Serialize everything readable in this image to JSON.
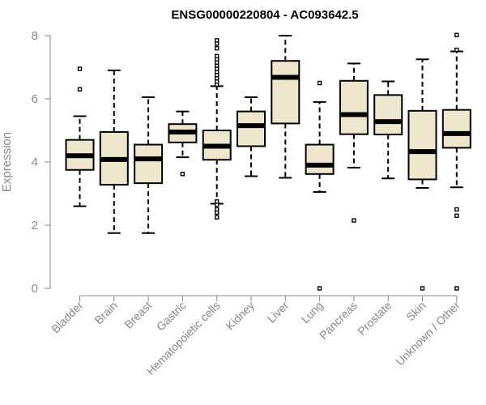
{
  "chart_data": {
    "type": "boxplot",
    "title": "ENSG00000220804 - AC093642.5",
    "xlabel": "",
    "ylabel": "Expression",
    "ylim": [
      0,
      8
    ],
    "yticks": [
      0,
      2,
      4,
      6,
      8
    ],
    "colors": {
      "box_fill": "#EEE6CC",
      "stroke": "#000000",
      "axis": "#888888",
      "text": "#888888"
    },
    "categories": [
      "Bladder",
      "Brain",
      "Breast",
      "Gastric",
      "Hematopoietic cells",
      "Kidney",
      "Liver",
      "Lung",
      "Pancreas",
      "Prostate",
      "Skin",
      "Unknown / Other"
    ],
    "boxes": [
      {
        "name": "Bladder",
        "whisker_low": 2.6,
        "q1": 3.75,
        "median": 4.2,
        "q3": 4.7,
        "whisker_high": 5.45,
        "outliers": [
          6.3,
          6.95
        ]
      },
      {
        "name": "Brain",
        "whisker_low": 1.75,
        "q1": 3.28,
        "median": 4.08,
        "q3": 4.95,
        "whisker_high": 6.9,
        "outliers": []
      },
      {
        "name": "Breast",
        "whisker_low": 1.75,
        "q1": 3.33,
        "median": 4.1,
        "q3": 4.55,
        "whisker_high": 6.05,
        "outliers": []
      },
      {
        "name": "Gastric",
        "whisker_low": 4.15,
        "q1": 4.62,
        "median": 4.95,
        "q3": 5.2,
        "whisker_high": 5.6,
        "outliers": [
          3.62
        ]
      },
      {
        "name": "Hematopoietic cells",
        "whisker_low": 2.68,
        "q1": 4.07,
        "median": 4.5,
        "q3": 5.0,
        "whisker_high": 6.4,
        "outliers": [
          2.25,
          2.4,
          2.5,
          2.65,
          2.75,
          6.45,
          6.55,
          6.65,
          6.75,
          6.85,
          6.95,
          7.05,
          7.15,
          7.25,
          7.35,
          7.6,
          7.75,
          7.85
        ]
      },
      {
        "name": "Kidney",
        "whisker_low": 3.55,
        "q1": 4.5,
        "median": 5.15,
        "q3": 5.6,
        "whisker_high": 6.05,
        "outliers": []
      },
      {
        "name": "Liver",
        "whisker_low": 3.5,
        "q1": 5.22,
        "median": 6.68,
        "q3": 7.2,
        "whisker_high": 8.0,
        "outliers": []
      },
      {
        "name": "Lung",
        "whisker_low": 3.05,
        "q1": 3.62,
        "median": 3.9,
        "q3": 4.55,
        "whisker_high": 5.9,
        "outliers": [
          0.0,
          6.5
        ]
      },
      {
        "name": "Pancreas",
        "whisker_low": 3.82,
        "q1": 4.88,
        "median": 5.5,
        "q3": 6.57,
        "whisker_high": 7.12,
        "outliers": [
          2.15
        ]
      },
      {
        "name": "Prostate",
        "whisker_low": 3.48,
        "q1": 4.87,
        "median": 5.28,
        "q3": 6.12,
        "whisker_high": 6.55,
        "outliers": []
      },
      {
        "name": "Skin",
        "whisker_low": 3.18,
        "q1": 3.45,
        "median": 4.33,
        "q3": 5.62,
        "whisker_high": 7.25,
        "outliers": [
          0.0
        ]
      },
      {
        "name": "Unknown / Other",
        "whisker_low": 3.2,
        "q1": 4.45,
        "median": 4.9,
        "q3": 5.65,
        "whisker_high": 7.5,
        "outliers": [
          0.0,
          2.3,
          2.5,
          7.55,
          8.02
        ]
      }
    ]
  }
}
